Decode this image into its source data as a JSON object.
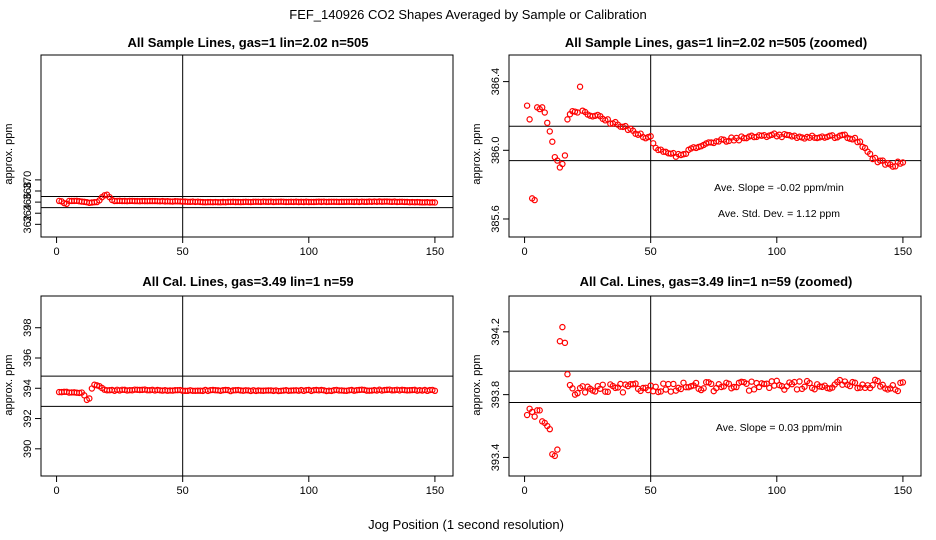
{
  "figure": {
    "title": "FEF_140926  CO2 Shapes Averaged by Sample or Calibration",
    "xlabel": "Jog Position (1 second resolution)"
  },
  "colors": {
    "points": "#ff0000",
    "axes": "#000000",
    "background": "#ffffff"
  },
  "chart_data": [
    {
      "id": "p1",
      "type": "scatter",
      "title": "All Sample Lines, gas=1 lin=2.02 n=505",
      "ylabel": "approx. ppm",
      "xlim": [
        -3,
        154
      ],
      "ylim": [
        360.8,
        391.4
      ],
      "xticks": [
        0,
        50,
        100,
        150
      ],
      "xtick_labels": [
        "0",
        "50",
        "100",
        "150"
      ],
      "yticks": [
        362,
        364,
        366,
        368,
        370
      ],
      "ytick_labels": [
        "362",
        "364",
        "366",
        "368",
        "370"
      ],
      "hlines": [
        365.0,
        367.0
      ],
      "vlines": [
        50
      ],
      "generator": {
        "mode": "sample",
        "lo": 1,
        "hi": 150,
        "knots": [
          [
            1,
            366.2
          ],
          [
            2,
            366.15
          ],
          [
            3,
            365.8
          ],
          [
            4,
            365.7
          ],
          [
            5,
            366.2
          ],
          [
            8,
            366.25
          ],
          [
            10,
            366.1
          ],
          [
            13,
            365.9
          ],
          [
            16,
            366.0
          ],
          [
            17,
            366.3
          ],
          [
            18,
            366.9
          ],
          [
            19,
            367.2
          ],
          [
            20,
            367.3
          ],
          [
            21,
            366.9
          ],
          [
            22,
            366.4
          ],
          [
            23,
            366.2
          ],
          [
            40,
            366.18
          ],
          [
            50,
            366.1
          ],
          [
            60,
            366.0
          ],
          [
            80,
            366.05
          ],
          [
            100,
            366.05
          ],
          [
            120,
            366.05
          ],
          [
            130,
            366.1
          ],
          [
            140,
            366.0
          ],
          [
            150,
            365.95
          ]
        ],
        "jitter": 0.03
      },
      "annotations": []
    },
    {
      "id": "p2",
      "type": "scatter",
      "title": "All Sample Lines, gas=1 lin=2.02 n=505 (zoomed)",
      "ylabel": "approx. ppm",
      "xlim": [
        -3,
        154
      ],
      "ylim": [
        385.53,
        386.52
      ],
      "xticks": [
        0,
        50,
        100,
        150
      ],
      "xtick_labels": [
        "0",
        "50",
        "100",
        "150"
      ],
      "yticks": [
        385.6,
        386.0,
        386.4
      ],
      "ytick_labels": [
        "385.6",
        "386.0",
        "386.4"
      ],
      "hlines": [
        385.94,
        386.14
      ],
      "vlines": [
        50
      ],
      "generator": {
        "mode": "sample",
        "lo": 1,
        "hi": 150,
        "knots": [
          [
            23,
            386.22
          ],
          [
            30,
            386.19
          ],
          [
            40,
            386.13
          ],
          [
            45,
            386.1
          ],
          [
            50,
            386.07
          ],
          [
            53,
            386.0
          ],
          [
            58,
            385.98
          ],
          [
            61,
            385.97
          ],
          [
            63,
            385.98
          ],
          [
            70,
            386.03
          ],
          [
            80,
            386.06
          ],
          [
            90,
            386.08
          ],
          [
            100,
            386.09
          ],
          [
            110,
            386.08
          ],
          [
            120,
            386.08
          ],
          [
            128,
            386.08
          ],
          [
            131,
            386.06
          ],
          [
            135,
            386.02
          ],
          [
            138,
            385.95
          ],
          [
            142,
            385.93
          ],
          [
            146,
            385.91
          ],
          [
            150,
            385.94
          ]
        ],
        "jitter": 0.012,
        "explicit": [
          [
            1,
            386.26
          ],
          [
            2,
            386.18
          ],
          [
            3,
            385.72
          ],
          [
            4,
            385.71
          ],
          [
            5,
            386.25
          ],
          [
            6,
            386.24
          ],
          [
            7,
            386.25
          ],
          [
            8,
            386.22
          ],
          [
            9,
            386.16
          ],
          [
            10,
            386.11
          ],
          [
            11,
            386.05
          ],
          [
            12,
            385.96
          ],
          [
            13,
            385.94
          ],
          [
            14,
            385.9
          ],
          [
            15,
            385.92
          ],
          [
            16,
            385.97
          ],
          [
            17,
            386.18
          ],
          [
            22,
            386.37
          ]
        ]
      },
      "annotations": [
        "Ave. Slope =  -0.02  ppm/min",
        "Ave. Std. Dev. =  1.12  ppm"
      ]
    },
    {
      "id": "p3",
      "type": "scatter",
      "title": "All Cal. Lines, gas=3.49 lin=1 n=59",
      "ylabel": "approx. ppm",
      "xlim": [
        -3,
        154
      ],
      "ylim": [
        388.6,
        399.7
      ],
      "xticks": [
        0,
        50,
        100,
        150
      ],
      "xtick_labels": [
        "0",
        "50",
        "100",
        "150"
      ],
      "yticks": [
        390,
        392,
        394,
        396,
        398
      ],
      "ytick_labels": [
        "390",
        "392",
        "394",
        "396",
        "398"
      ],
      "hlines": [
        392.8,
        394.8
      ],
      "vlines": [
        50
      ],
      "generator": {
        "mode": "sample",
        "lo": 1,
        "hi": 150,
        "knots": [
          [
            1,
            393.75
          ],
          [
            5,
            393.75
          ],
          [
            10,
            393.7
          ],
          [
            11,
            393.55
          ],
          [
            12,
            393.2
          ],
          [
            13,
            393.3
          ],
          [
            14,
            394.0
          ],
          [
            15,
            394.2
          ],
          [
            16,
            394.2
          ],
          [
            18,
            394.0
          ],
          [
            20,
            393.85
          ],
          [
            30,
            393.9
          ],
          [
            50,
            393.85
          ],
          [
            80,
            393.85
          ],
          [
            110,
            393.85
          ],
          [
            135,
            393.9
          ],
          [
            150,
            393.85
          ]
        ],
        "jitter": 0.04
      },
      "annotations": []
    },
    {
      "id": "p4",
      "type": "scatter",
      "title": "All Cal. Lines, gas=3.49 lin=1 n=59 (zoomed)",
      "ylabel": "approx. ppm",
      "xlim": [
        -3,
        154
      ],
      "ylim": [
        393.32,
        394.39
      ],
      "xticks": [
        0,
        50,
        100,
        150
      ],
      "xtick_labels": [
        "0",
        "50",
        "100",
        "150"
      ],
      "yticks": [
        393.4,
        393.8,
        394.2
      ],
      "ytick_labels": [
        "393.4",
        "393.8",
        "394.2"
      ],
      "hlines": [
        393.75,
        393.95
      ],
      "vlines": [
        50
      ],
      "generator": {
        "mode": "sample",
        "lo": 1,
        "hi": 150,
        "knots": [
          [
            18,
            393.84
          ],
          [
            25,
            393.83
          ],
          [
            40,
            393.84
          ],
          [
            60,
            393.85
          ],
          [
            80,
            393.85
          ],
          [
            100,
            393.86
          ],
          [
            120,
            393.86
          ],
          [
            135,
            393.87
          ],
          [
            150,
            393.85
          ]
        ],
        "jitter": 0.03,
        "explicit": [
          [
            1,
            393.67
          ],
          [
            2,
            393.71
          ],
          [
            3,
            393.69
          ],
          [
            4,
            393.66
          ],
          [
            5,
            393.7
          ],
          [
            6,
            393.7
          ],
          [
            7,
            393.63
          ],
          [
            8,
            393.62
          ],
          [
            9,
            393.6
          ],
          [
            10,
            393.58
          ],
          [
            11,
            393.42
          ],
          [
            12,
            393.41
          ],
          [
            13,
            393.45
          ],
          [
            14,
            394.14
          ],
          [
            15,
            394.23
          ],
          [
            16,
            394.13
          ],
          [
            17,
            393.93
          ],
          [
            19,
            393.84
          ],
          [
            20,
            393.8
          ]
        ]
      },
      "annotations": [
        "Ave. Slope =  0.03  ppm/min"
      ]
    }
  ]
}
